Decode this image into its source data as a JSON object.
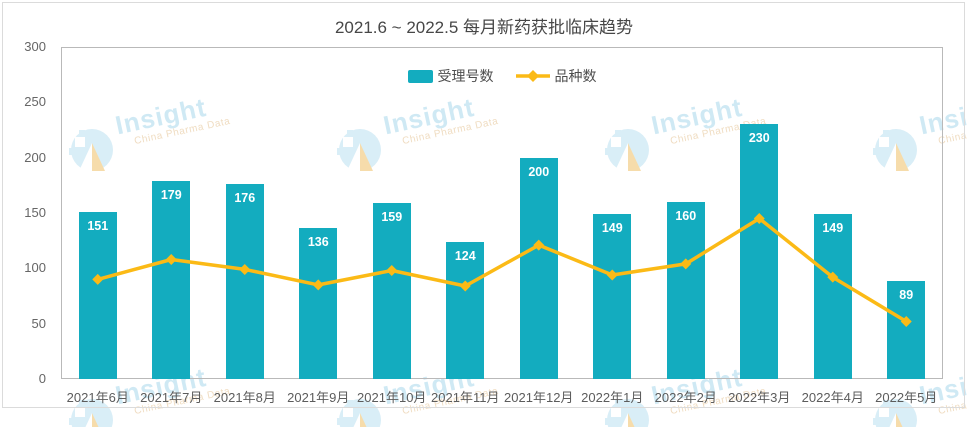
{
  "title": "2021.6 ~ 2022.5 每月新药获批临床趋势",
  "legend": {
    "items": [
      {
        "label": "受理号数",
        "type": "bar",
        "color": "#13acbf"
      },
      {
        "label": "品种数",
        "type": "line",
        "color": "#fbba16"
      }
    ]
  },
  "watermark": {
    "brand": "Insight",
    "tagline": "China Pharma Data"
  },
  "chart_data": {
    "type": "bar+line",
    "title": "2021.6 ~ 2022.5 每月新药获批临床趋势",
    "categories": [
      "2021年6月",
      "2021年7月",
      "2021年8月",
      "2021年9月",
      "2021年10月",
      "2021年11月",
      "2021年12月",
      "2022年1月",
      "2022年2月",
      "2022年3月",
      "2022年4月",
      "2022年5月"
    ],
    "series": [
      {
        "name": "受理号数",
        "type": "bar",
        "color": "#13acbf",
        "values": [
          151,
          179,
          176,
          136,
          159,
          124,
          200,
          149,
          160,
          230,
          149,
          89
        ],
        "data_labels": true
      },
      {
        "name": "品种数",
        "type": "line",
        "color": "#fbba16",
        "values": [
          90,
          108,
          99,
          85,
          98,
          84,
          121,
          94,
          104,
          145,
          92,
          52
        ],
        "marker": "diamond"
      }
    ],
    "ylim": [
      0,
      300
    ],
    "yticks": [
      0,
      50,
      100,
      150,
      200,
      250,
      300
    ],
    "grid": false,
    "legend_position": "top-center",
    "bar_value_labels": "inside-top"
  }
}
